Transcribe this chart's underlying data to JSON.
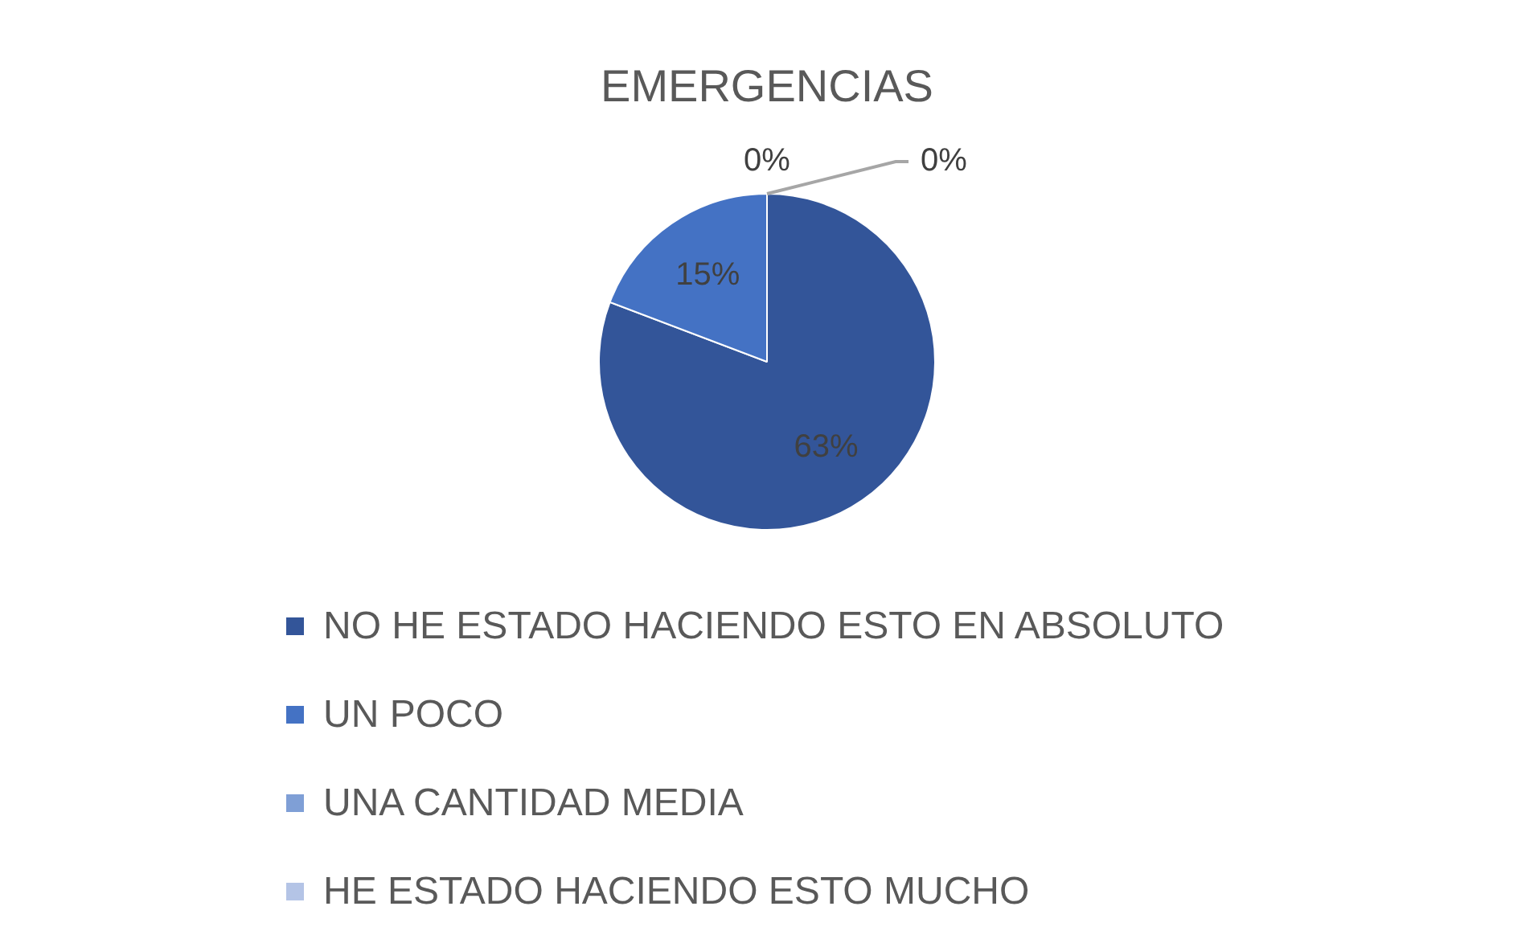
{
  "chart_data": {
    "type": "pie",
    "title": "EMERGENCIAS",
    "categories": [
      "NO HE ESTADO HACIENDO ESTO EN ABSOLUTO",
      "UN POCO",
      "UNA CANTIDAD MEDIA",
      "HE ESTADO HACIENDO ESTO MUCHO"
    ],
    "values": [
      63,
      15,
      0,
      0
    ],
    "colors": [
      "#335599",
      "#4472c4",
      "#7f9fd6",
      "#b4c4e6"
    ],
    "value_labels": [
      "63%",
      "15%",
      "0%",
      "0%"
    ],
    "legend": "bottom"
  }
}
